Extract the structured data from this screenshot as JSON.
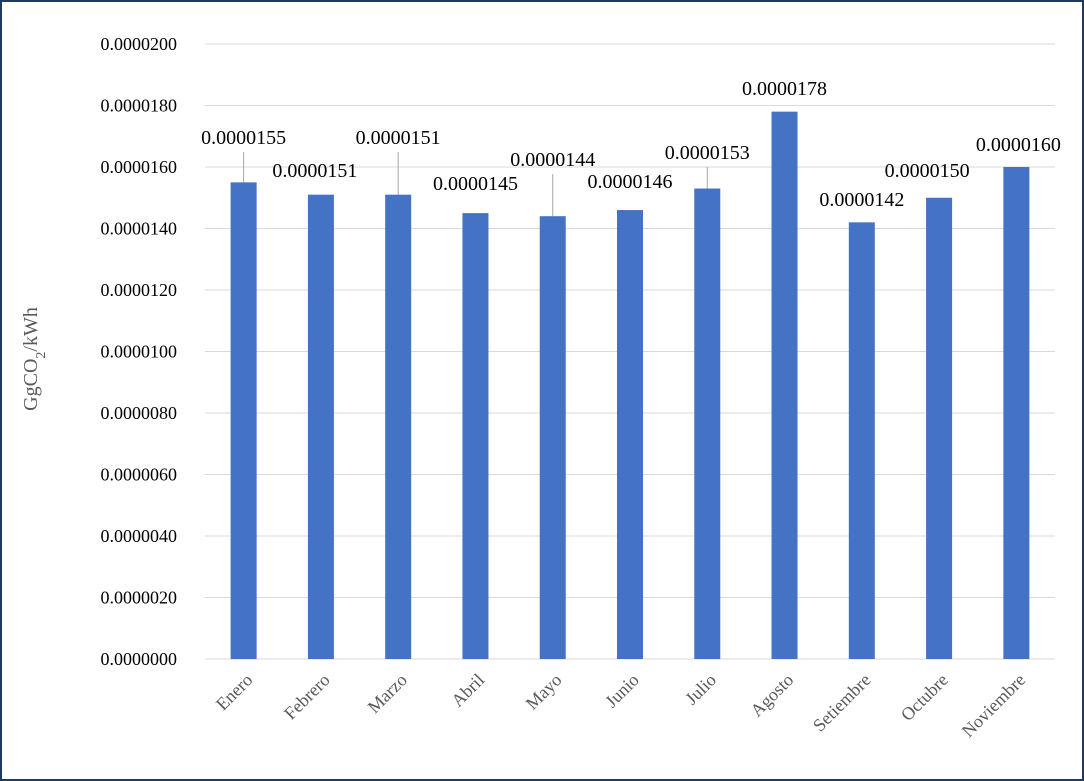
{
  "chart_data": {
    "type": "bar",
    "ylabel_main": "GgCO",
    "ylabel_sub": "2",
    "ylabel_tail": "/kWh",
    "categories": [
      "Enero",
      "Febrero",
      "Marzo",
      "Abril",
      "Mayo",
      "Junio",
      "Julio",
      "Agosto",
      "Setiembre",
      "Octubre",
      "Noviembre"
    ],
    "values": [
      1.55e-05,
      1.51e-05,
      1.51e-05,
      1.45e-05,
      1.44e-05,
      1.46e-05,
      1.53e-05,
      1.78e-05,
      1.42e-05,
      1.5e-05,
      1.6e-05
    ],
    "data_labels": [
      "0.0000155",
      "0.0000151",
      "0.0000151",
      "0.0000145",
      "0.0000144",
      "0.0000146",
      "0.0000153",
      "0.0000178",
      "0.0000142",
      "0.0000150",
      "0.0000160"
    ],
    "ylim": [
      0,
      2e-05
    ],
    "yticks": [
      "0.0000000",
      "0.0000020",
      "0.0000040",
      "0.0000060",
      "0.0000080",
      "0.0000100",
      "0.0000120",
      "0.0000140",
      "0.0000160",
      "0.0000180",
      "0.0000200"
    ],
    "grid": true,
    "bar_color": "#4472c4",
    "grid_color": "#d9d9d9"
  }
}
